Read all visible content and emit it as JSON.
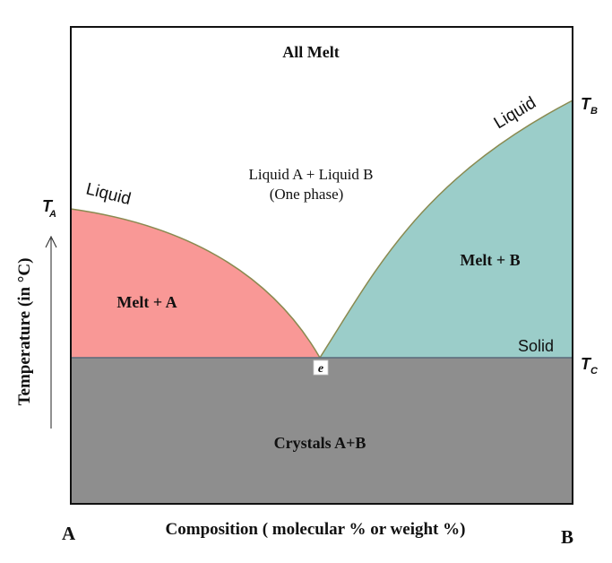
{
  "regions": {
    "top": "All Melt",
    "middle_line1": "Liquid A + Liquid B",
    "middle_line2": "(One phase)",
    "left": "Melt + A",
    "right": "Melt + B",
    "bottom": "Crystals A+B"
  },
  "curve_labels": {
    "left_liquid": "Liquid",
    "right_liquid": "Liquid",
    "solid": "Solid"
  },
  "temperature_marks": {
    "ta_letter": "T",
    "ta_sub": "A",
    "tb_letter": "T",
    "tb_sub": "B",
    "tc_letter": "T",
    "tc_sub": "C"
  },
  "eutectic_label": "e",
  "axes": {
    "y_label": "Temperature (in °C)",
    "x_label": "Composition ( molecular % or weight %)",
    "left_end": "A",
    "right_end": "B"
  },
  "colors": {
    "melt_a": "#f99896",
    "melt_b": "#9bcdc9",
    "crystals": "#8e8e8e",
    "curve": "#8a8a50",
    "frame": "#111111"
  }
}
